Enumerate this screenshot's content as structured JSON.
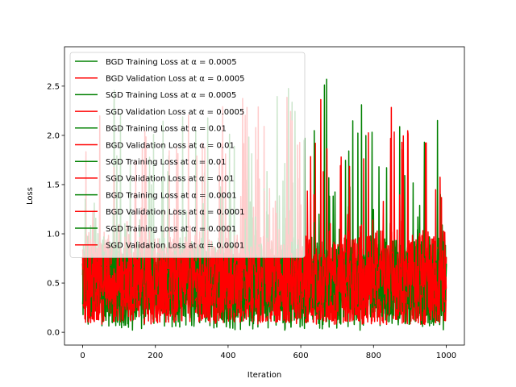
{
  "chart_data": {
    "type": "line",
    "xlabel": "Iteration",
    "ylabel": "Loss",
    "xlim": [
      -50,
      1050
    ],
    "ylim": [
      -0.13,
      2.9
    ],
    "xticks": [
      0,
      200,
      400,
      600,
      800,
      1000
    ],
    "yticks": [
      0.0,
      0.5,
      1.0,
      1.5,
      2.0,
      2.5
    ],
    "xtick_labels": [
      "0",
      "200",
      "400",
      "600",
      "800",
      "1000"
    ],
    "ytick_labels": [
      "0.0",
      "0.5",
      "1.0",
      "1.5",
      "2.0",
      "2.5"
    ],
    "legend_position": "upper-left",
    "grid": false,
    "series": [
      {
        "name": "BGD Training Loss at α = 0.0005",
        "color": "#008000",
        "kind": "bgd-smooth",
        "start": 0.69,
        "end": 0.475,
        "rate": 0.02
      },
      {
        "name": "BGD Validation Loss at α = 0.0005",
        "color": "#ff0000",
        "kind": "bgd-smooth",
        "start": 0.7,
        "end": 0.48,
        "rate": 0.02
      },
      {
        "name": "SGD Training Loss at α = 0.0005",
        "color": "#008000",
        "kind": "sgd-noisy",
        "center": 0.45,
        "spread": 0.55,
        "min": 0.02,
        "max": 2.76
      },
      {
        "name": "SGD Validation Loss at α = 0.0005",
        "color": "#ff0000",
        "kind": "sgd-noisy",
        "center": 0.46,
        "spread": 0.6,
        "min": 0.08,
        "max": 2.48
      },
      {
        "name": "BGD Training Loss at α = 0.01",
        "color": "#008000",
        "kind": "bgd-smooth",
        "start": 0.69,
        "end": 0.47,
        "rate": 0.15
      },
      {
        "name": "BGD Validation Loss at α = 0.01",
        "color": "#ff0000",
        "kind": "bgd-smooth",
        "start": 0.7,
        "end": 0.42,
        "rate": 0.5
      },
      {
        "name": "SGD Training Loss at α = 0.01",
        "color": "#008000",
        "kind": "sgd-noisy",
        "center": 0.5,
        "spread": 0.5,
        "min": 0.05,
        "max": 2.37
      },
      {
        "name": "SGD Validation Loss at α = 0.01",
        "color": "#ff0000",
        "kind": "sgd-noisy",
        "center": 0.5,
        "spread": 0.55,
        "min": 0.1,
        "max": 2.4
      },
      {
        "name": "BGD Training Loss at α = 0.0001",
        "color": "#008000",
        "kind": "bgd-smooth",
        "start": 0.69,
        "end": 0.6,
        "rate": 0.004
      },
      {
        "name": "BGD Validation Loss at α = 0.0001",
        "color": "#ff0000",
        "kind": "bgd-smooth",
        "start": 0.7,
        "end": 0.62,
        "rate": 0.004
      },
      {
        "name": "SGD Training Loss at α = 0.0001",
        "color": "#008000",
        "kind": "sgd-noisy",
        "center": 0.55,
        "spread": 0.45,
        "min": 0.1,
        "max": 1.9
      },
      {
        "name": "SGD Validation Loss at α = 0.0001",
        "color": "#ff0000",
        "kind": "sgd-noisy",
        "center": 0.55,
        "spread": 0.5,
        "min": 0.1,
        "max": 2.1
      }
    ],
    "x_points": 1000
  }
}
